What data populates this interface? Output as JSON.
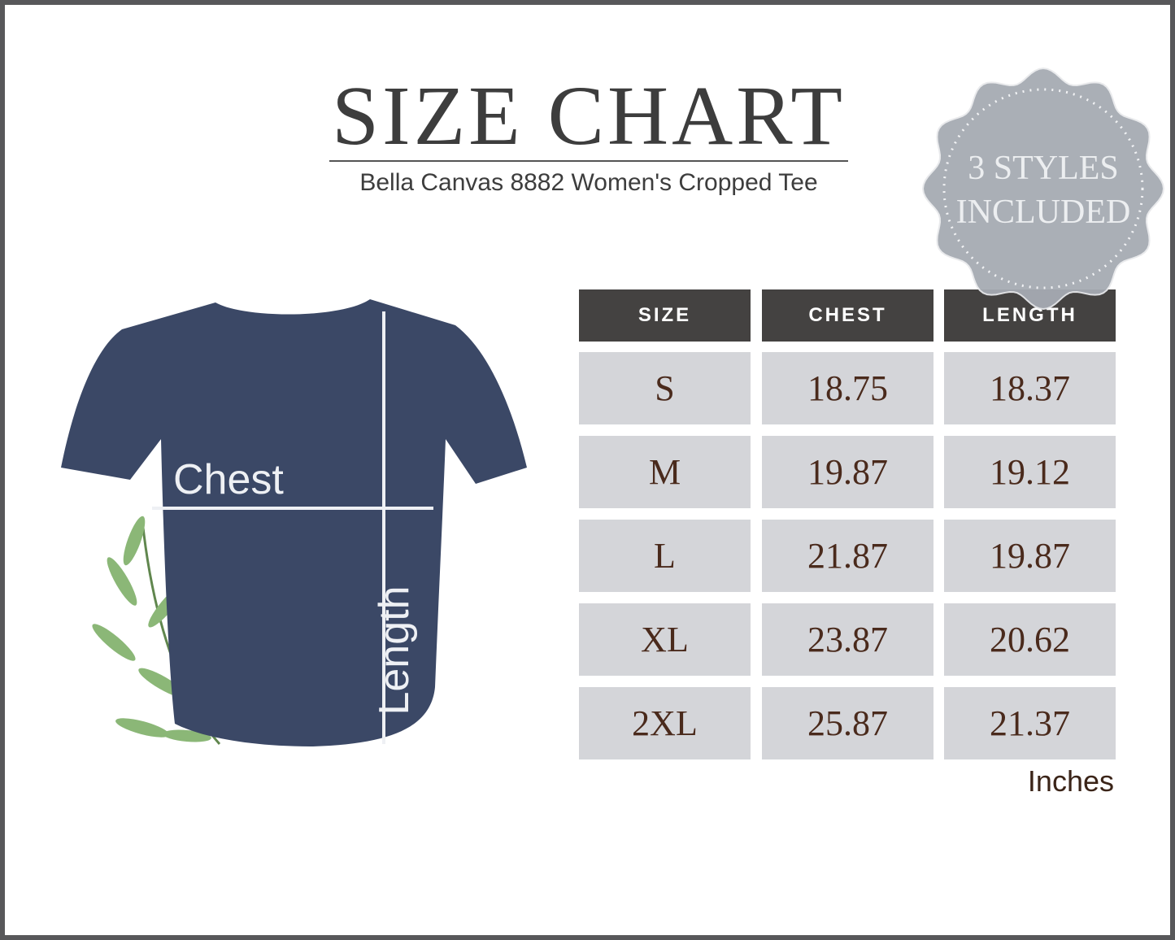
{
  "title": "SIZE CHART",
  "subtitle": "Bella Canvas 8882 Women's Cropped Tee",
  "badge": {
    "line1": "3 STYLES",
    "line2": "INCLUDED",
    "color": "#a6abb3"
  },
  "diagram": {
    "chest_label": "Chest",
    "length_label": "Length",
    "shirt_color": "#3b4866"
  },
  "table": {
    "headers": [
      "SIZE",
      "CHEST",
      "LENGTH"
    ],
    "rows": [
      [
        "S",
        "18.75",
        "18.37"
      ],
      [
        "M",
        "19.87",
        "19.12"
      ],
      [
        "L",
        "21.87",
        "19.87"
      ],
      [
        "XL",
        "23.87",
        "20.62"
      ],
      [
        "2XL",
        "25.87",
        "21.37"
      ]
    ],
    "units": "Inches"
  }
}
